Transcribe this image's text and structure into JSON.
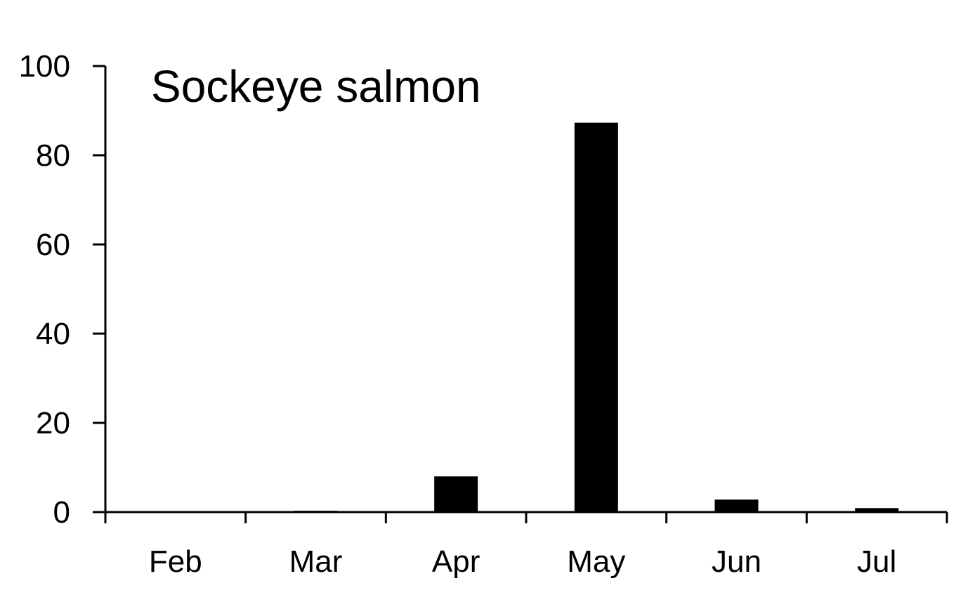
{
  "chart_data": {
    "type": "bar",
    "title": "Sockeye salmon",
    "xlabel": "",
    "ylabel": "",
    "categories": [
      "Feb",
      "Mar",
      "Apr",
      "May",
      "Jun",
      "Jul"
    ],
    "values": [
      0,
      0.3,
      8,
      87.3,
      2.8,
      0.9
    ],
    "ylim": [
      0,
      100
    ],
    "yticks": [
      "0",
      "20",
      "40",
      "60",
      "80",
      "100"
    ],
    "grid": false,
    "legend": "none",
    "colors": {
      "bar": "#000000",
      "axis": "#000000",
      "background": "#ffffff"
    }
  }
}
